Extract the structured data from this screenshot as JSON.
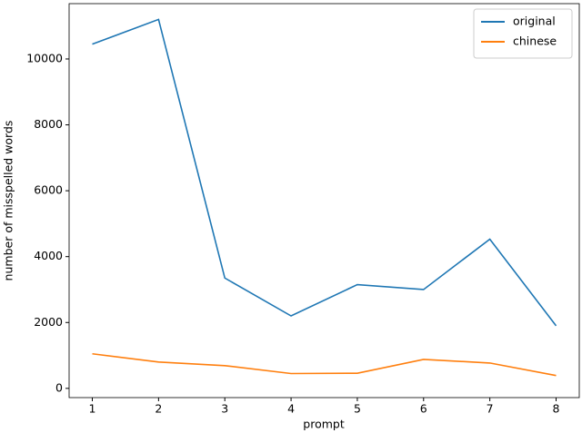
{
  "chart_data": {
    "type": "line",
    "x_label": "prompt",
    "y_label": "number of misspelled words",
    "x": [
      1,
      2,
      3,
      4,
      5,
      6,
      7,
      8
    ],
    "series": [
      {
        "name": "original",
        "color": "#1f77b4",
        "values": [
          10450,
          11200,
          3350,
          2200,
          3150,
          3000,
          4530,
          1900
        ]
      },
      {
        "name": "chinese",
        "color": "#ff7f0e",
        "values": [
          1050,
          800,
          690,
          450,
          460,
          880,
          770,
          390
        ]
      }
    ],
    "xlim": [
      0.65,
      8.35
    ],
    "ylim": [
      -280,
      11680
    ],
    "xticks": [
      1,
      2,
      3,
      4,
      5,
      6,
      7,
      8
    ],
    "yticks": [
      0,
      2000,
      4000,
      6000,
      8000,
      10000
    ],
    "grid": false,
    "legend": "upper right"
  }
}
